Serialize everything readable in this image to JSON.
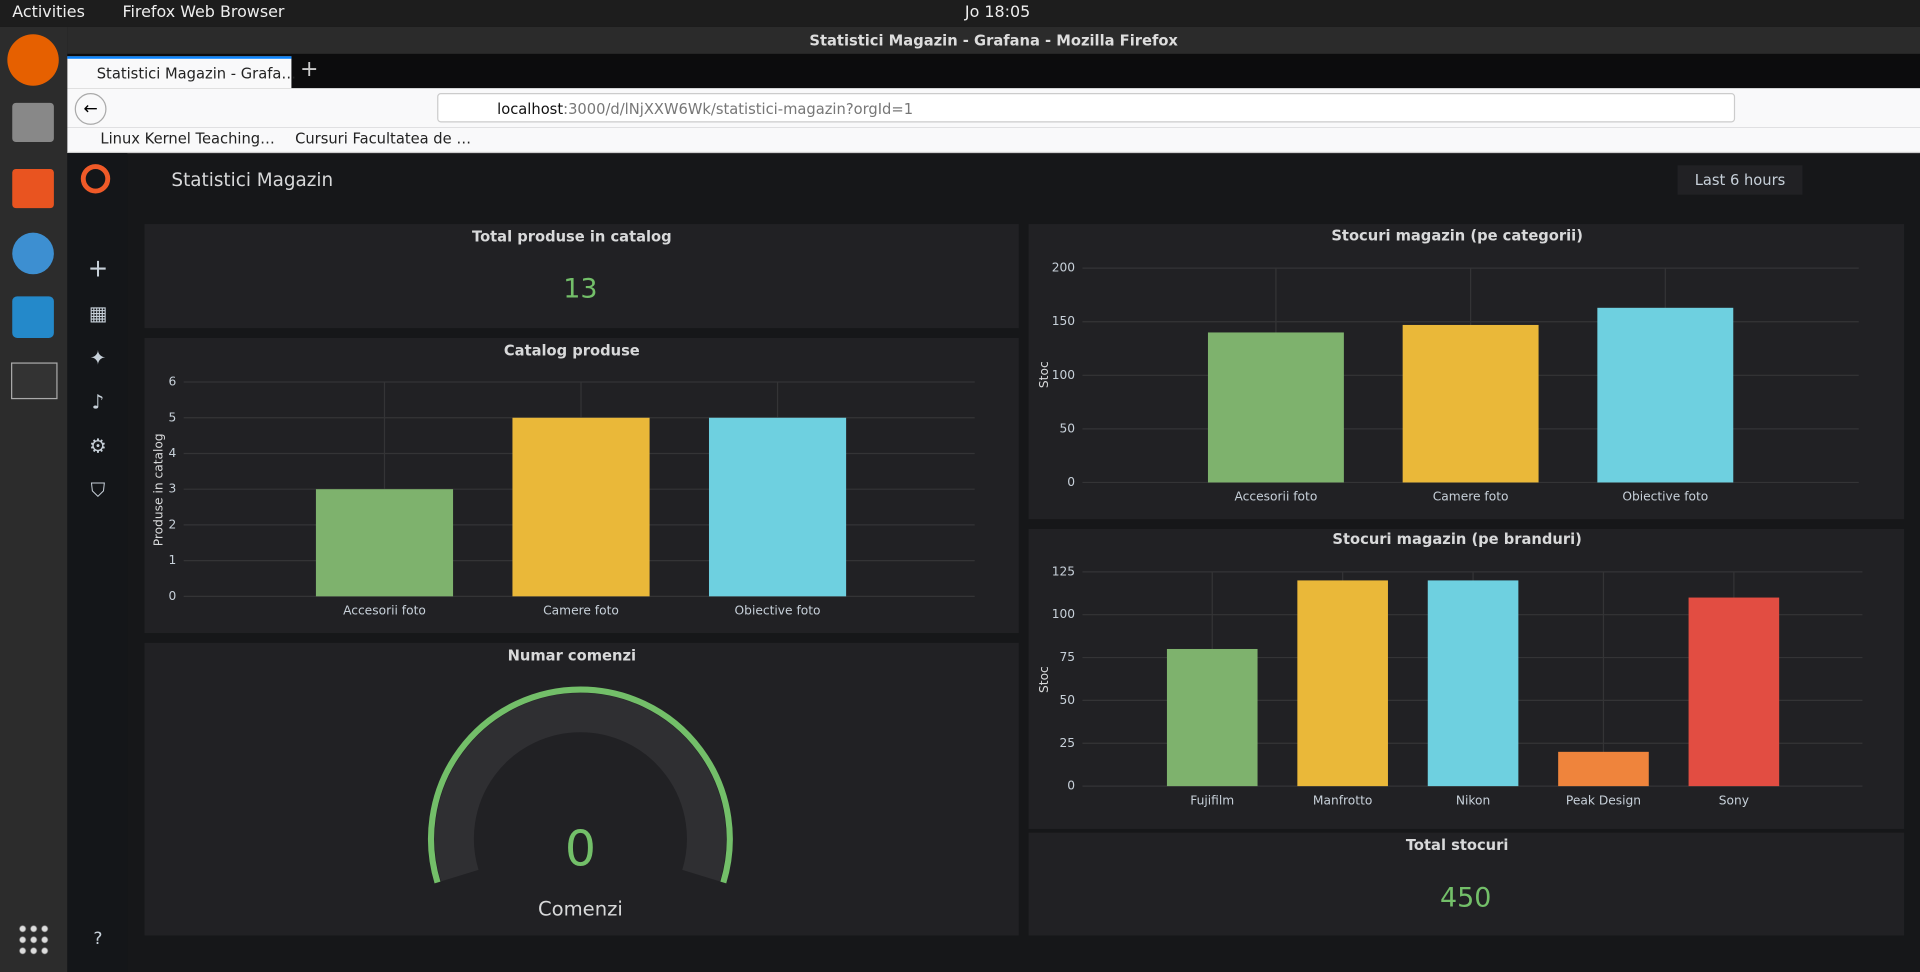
{
  "ubuntu": {
    "activities": "Activities",
    "app_menu": "Firefox Web Browser",
    "clock": "Jo 18:05"
  },
  "browser": {
    "window_title": "Statistici Magazin - Grafana - Mozilla Firefox",
    "tab_title": "Statistici Magazin - Grafa…",
    "url_host": "localhost",
    "url_rest": ":3000/d/lNjXXW6Wk/statistici-magazin?orgId=1",
    "bookmarks": [
      "Linux Kernel Teaching…",
      "Cursuri Facultatea de …"
    ]
  },
  "grafana": {
    "dashboard_title": "Statistici Magazin",
    "time_range": "Last 6 hours",
    "stat_products": {
      "title": "Total produse in catalog",
      "value": "13"
    },
    "gauge_orders": {
      "title": "Numar comenzi",
      "value": "0",
      "label": "Comenzi"
    },
    "stat_stock": {
      "title": "Total stocuri",
      "value": "450"
    }
  },
  "chart_data": [
    {
      "type": "bar",
      "title": "Catalog produse",
      "y_label": "Produse in catalog",
      "categories": [
        "Accesorii foto",
        "Camere foto",
        "Obiective foto"
      ],
      "values": [
        3,
        5,
        5
      ],
      "colors": [
        "#7eb26d",
        "#eab839",
        "#6ed0e0"
      ],
      "ylim": [
        0,
        6
      ],
      "yticks": [
        0,
        1,
        2,
        3,
        4,
        5,
        6
      ],
      "grid": true
    },
    {
      "type": "bar",
      "title": "Stocuri magazin (pe categorii)",
      "y_label": "Stoc",
      "categories": [
        "Accesorii foto",
        "Camere foto",
        "Obiective foto"
      ],
      "values": [
        140,
        147,
        163
      ],
      "colors": [
        "#7eb26d",
        "#eab839",
        "#6ed0e0"
      ],
      "ylim": [
        0,
        200
      ],
      "yticks": [
        0,
        50,
        100,
        150,
        200
      ],
      "grid": true
    },
    {
      "type": "bar",
      "title": "Stocuri magazin (pe branduri)",
      "y_label": "Stoc",
      "categories": [
        "Fujifilm",
        "Manfrotto",
        "Nikon",
        "Peak Design",
        "Sony"
      ],
      "values": [
        80,
        120,
        120,
        20,
        110
      ],
      "colors": [
        "#7eb26d",
        "#eab839",
        "#6ed0e0",
        "#ef843c",
        "#e24d42"
      ],
      "ylim": [
        0,
        125
      ],
      "yticks": [
        0,
        25,
        50,
        75,
        100,
        125
      ],
      "grid": true
    }
  ]
}
